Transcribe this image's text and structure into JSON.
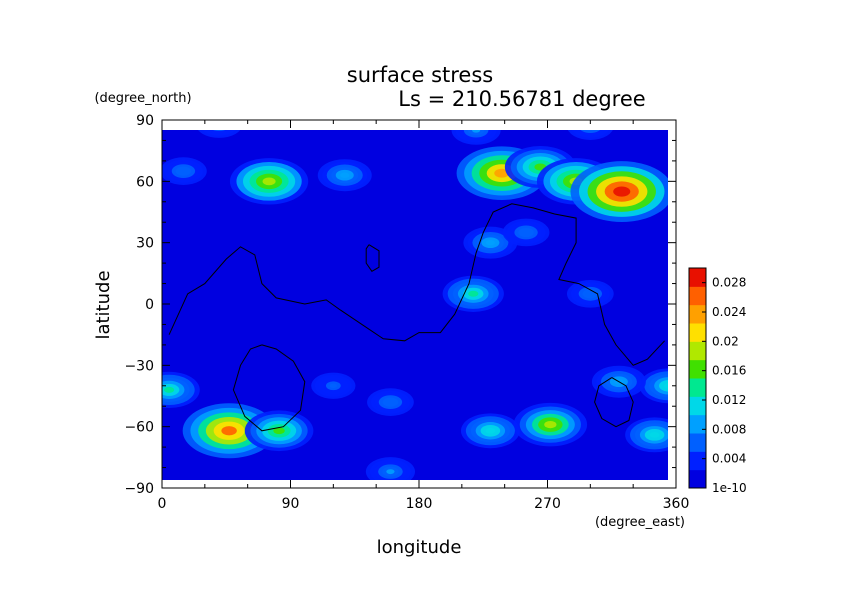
{
  "chart_data": {
    "type": "heatmap",
    "title": "surface stress",
    "subtitle": "Ls = 210.56781 degree",
    "xlabel": "longitude",
    "ylabel": "latitude",
    "x_unit": "(degree_east)",
    "y_unit": "(degree_north)",
    "xlim": [
      0,
      360
    ],
    "ylim": [
      -90,
      90
    ],
    "x_ticks": [
      "0",
      "90",
      "180",
      "270",
      "360"
    ],
    "y_ticks": [
      "90",
      "60",
      "30",
      "0",
      "−30",
      "−60",
      "−90"
    ],
    "colorbar": {
      "min": 1e-10,
      "max": 0.03,
      "tick_labels": [
        "1e-10",
        "0.004",
        "0.008",
        "0.012",
        "0.016",
        "0.02",
        "0.024",
        "0.028"
      ],
      "colors": [
        "#0000e0",
        "#0020ff",
        "#0060ff",
        "#00a0ff",
        "#00d8e8",
        "#00e890",
        "#40e000",
        "#b0e800",
        "#ffe000",
        "#ffa000",
        "#ff6000",
        "#e81000"
      ]
    },
    "background_level": 0.002,
    "hotspots": [
      {
        "lon": 75,
        "lat": 60,
        "value": 0.02
      },
      {
        "lon": 128,
        "lat": 63,
        "value": 0.01
      },
      {
        "lon": 15,
        "lat": 65,
        "value": 0.007
      },
      {
        "lon": 238,
        "lat": 64,
        "value": 0.025
      },
      {
        "lon": 265,
        "lat": 67,
        "value": 0.017
      },
      {
        "lon": 290,
        "lat": 60,
        "value": 0.02
      },
      {
        "lon": 322,
        "lat": 55,
        "value": 0.03
      },
      {
        "lon": 230,
        "lat": 30,
        "value": 0.01
      },
      {
        "lon": 218,
        "lat": 5,
        "value": 0.013
      },
      {
        "lon": 255,
        "lat": 35,
        "value": 0.007
      },
      {
        "lon": 300,
        "lat": 5,
        "value": 0.007
      },
      {
        "lon": 47,
        "lat": -62,
        "value": 0.026
      },
      {
        "lon": 82,
        "lat": -62,
        "value": 0.016
      },
      {
        "lon": 5,
        "lat": -42,
        "value": 0.013
      },
      {
        "lon": 355,
        "lat": -40,
        "value": 0.012
      },
      {
        "lon": 272,
        "lat": -59,
        "value": 0.018
      },
      {
        "lon": 230,
        "lat": -62,
        "value": 0.012
      },
      {
        "lon": 345,
        "lat": -64,
        "value": 0.012
      },
      {
        "lon": 320,
        "lat": -38,
        "value": 0.01
      },
      {
        "lon": 120,
        "lat": -40,
        "value": 0.006
      },
      {
        "lon": 160,
        "lat": -48,
        "value": 0.007
      },
      {
        "lon": 160,
        "lat": -82,
        "value": 0.008
      },
      {
        "lon": 220,
        "lat": 85,
        "value": 0.008
      },
      {
        "lon": 40,
        "lat": 88,
        "value": 0.007
      },
      {
        "lon": 300,
        "lat": 87,
        "value": 0.007
      }
    ],
    "contours": [
      {
        "name": "continent-north",
        "points": [
          [
            5,
            -15
          ],
          [
            18,
            5
          ],
          [
            30,
            10
          ],
          [
            45,
            22
          ],
          [
            55,
            28
          ],
          [
            65,
            24
          ],
          [
            70,
            10
          ],
          [
            80,
            3
          ],
          [
            100,
            0
          ],
          [
            115,
            2
          ],
          [
            125,
            -3
          ],
          [
            140,
            -10
          ],
          [
            155,
            -17
          ],
          [
            170,
            -18
          ],
          [
            180,
            -14
          ],
          [
            195,
            -14
          ],
          [
            205,
            -5
          ],
          [
            215,
            10
          ],
          [
            220,
            25
          ],
          [
            225,
            35
          ],
          [
            232,
            45
          ],
          [
            245,
            49
          ],
          [
            260,
            47
          ],
          [
            275,
            44
          ],
          [
            290,
            42
          ],
          [
            290,
            30
          ],
          [
            283,
            20
          ],
          [
            278,
            12
          ],
          [
            292,
            10
          ],
          [
            305,
            5
          ],
          [
            310,
            -10
          ],
          [
            318,
            -20
          ],
          [
            330,
            -30
          ],
          [
            340,
            -27
          ],
          [
            352,
            -18
          ]
        ]
      },
      {
        "name": "basin-south",
        "points": [
          [
            70,
            -20
          ],
          [
            80,
            -22
          ],
          [
            92,
            -28
          ],
          [
            100,
            -38
          ],
          [
            97,
            -52
          ],
          [
            85,
            -60
          ],
          [
            70,
            -62
          ],
          [
            58,
            -55
          ],
          [
            50,
            -42
          ],
          [
            55,
            -30
          ],
          [
            62,
            -22
          ],
          [
            70,
            -20
          ]
        ]
      },
      {
        "name": "small-south-east",
        "points": [
          [
            315,
            -36
          ],
          [
            325,
            -40
          ],
          [
            330,
            -48
          ],
          [
            327,
            -57
          ],
          [
            318,
            -60
          ],
          [
            308,
            -56
          ],
          [
            303,
            -48
          ],
          [
            306,
            -40
          ],
          [
            315,
            -36
          ]
        ]
      },
      {
        "name": "small-north",
        "points": [
          [
            145,
            29
          ],
          [
            152,
            26
          ],
          [
            152,
            18
          ],
          [
            147,
            16
          ],
          [
            143,
            20
          ],
          [
            143,
            27
          ],
          [
            145,
            29
          ]
        ]
      }
    ]
  }
}
